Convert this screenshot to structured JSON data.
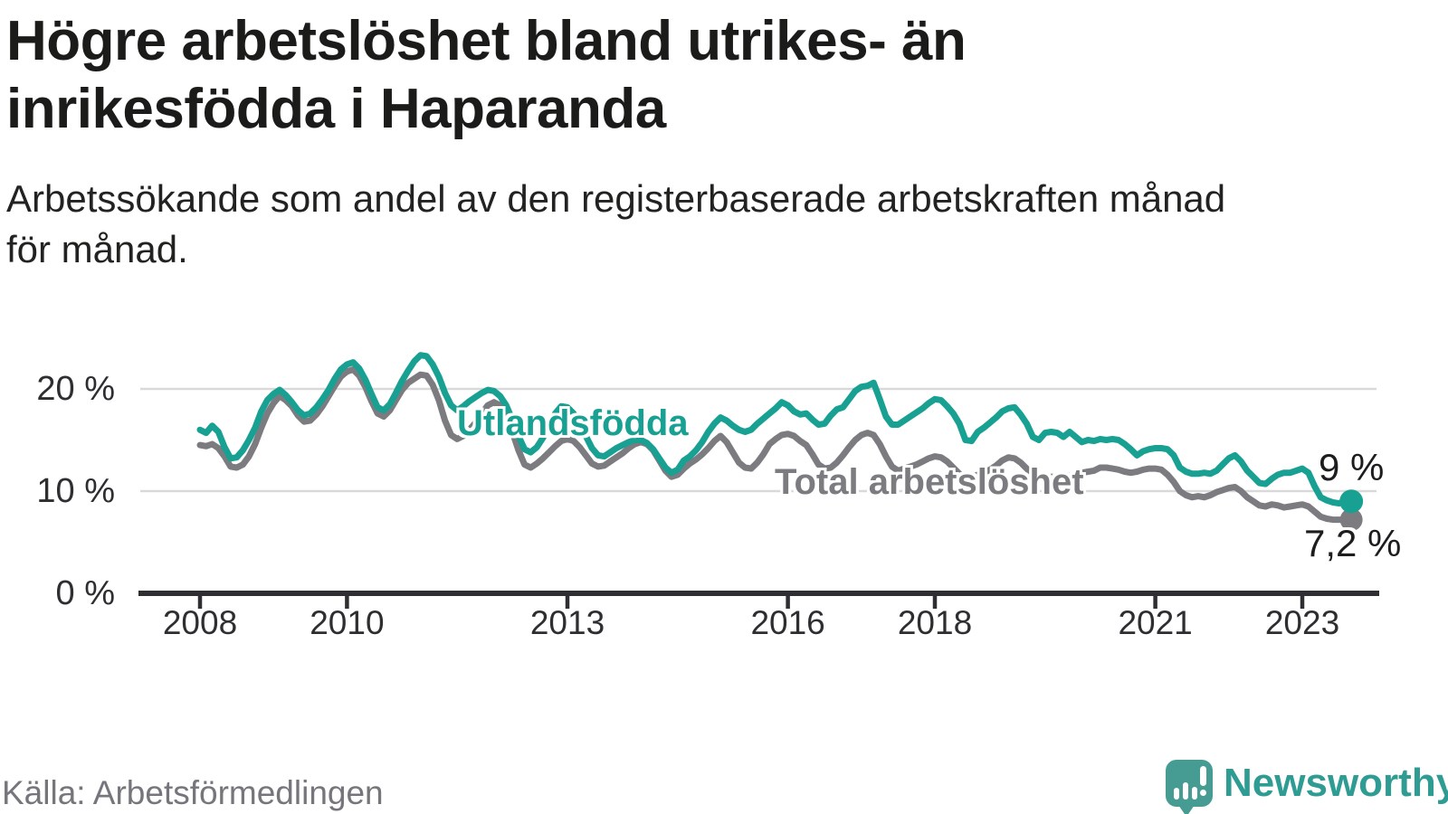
{
  "page": {
    "title_lines": [
      "Högre arbetslöshet bland utrikes- än",
      "inrikesfödda i Haparanda"
    ],
    "subtitle_lines": [
      "Arbetssökande som andel av den registerbaserade arbetskraften månad",
      "för månad."
    ],
    "source": "Källa: Arbetsförmedlingen",
    "brand_name": "Newsworthy",
    "brand_icon": "speech-bubble-with-bar-chart-and-exclamation"
  },
  "colors": {
    "foreign_born_line": "#18a192",
    "total_line": "#7b7b80",
    "axis": "#2f2f33",
    "gridline": "#d9d9d9",
    "value_label_text": "#1d1d1f",
    "muted_text": "#75757b",
    "brand_teal": "#2e9c93",
    "brand_icon_teal": "#469c93"
  },
  "chart_data": {
    "type": "line",
    "title": "Högre arbetslöshet bland utrikes- än inrikesfödda i Haparanda",
    "subtitle": "Arbetssökande som andel av den registerbaserade arbetskraften månad för månad.",
    "x": {
      "start_year": 2008,
      "start_month": 1,
      "end_year": 2023,
      "end_month": 9,
      "frequency": "monthly",
      "tick_years": [
        2008,
        2010,
        2013,
        2016,
        2018,
        2021,
        2023
      ]
    },
    "y": {
      "ticks": [
        0,
        10,
        20
      ],
      "suffix": " %",
      "min": 0,
      "max": 24
    },
    "grid": "horizontal",
    "legend_position": "inline-labels",
    "series": [
      {
        "name": "Utlandsfödda",
        "color": "#18a192",
        "end_label": "9 %",
        "end_dot": true,
        "values": [
          16.0,
          15.7,
          16.4,
          15.8,
          14.3,
          13.2,
          13.3,
          14.0,
          15.0,
          16.2,
          17.8,
          18.9,
          19.5,
          19.9,
          19.4,
          18.7,
          17.9,
          17.4,
          17.6,
          18.2,
          19.0,
          19.9,
          21.0,
          21.9,
          22.4,
          22.6,
          22.0,
          20.9,
          19.5,
          18.2,
          17.9,
          18.5,
          19.6,
          20.8,
          21.8,
          22.7,
          23.3,
          23.2,
          22.4,
          21.2,
          19.6,
          18.4,
          17.9,
          18.3,
          18.8,
          19.2,
          19.6,
          19.9,
          19.8,
          19.3,
          18.4,
          17.0,
          15.4,
          14.1,
          13.8,
          14.3,
          15.2,
          16.4,
          17.6,
          18.3,
          18.2,
          17.6,
          16.6,
          15.4,
          14.2,
          13.5,
          13.4,
          13.8,
          14.2,
          14.5,
          14.8,
          15.0,
          15.0,
          14.7,
          14.1,
          13.2,
          12.3,
          11.8,
          12.1,
          13.0,
          13.4,
          14.0,
          14.8,
          15.8,
          16.6,
          17.2,
          16.9,
          16.4,
          16.0,
          15.8,
          16.0,
          16.6,
          17.1,
          17.6,
          18.1,
          18.7,
          18.4,
          17.8,
          17.5,
          17.6,
          17.0,
          16.5,
          16.6,
          17.4,
          18.0,
          18.2,
          19.0,
          19.8,
          20.2,
          20.3,
          20.6,
          19.0,
          17.3,
          16.5,
          16.5,
          16.9,
          17.3,
          17.7,
          18.1,
          18.6,
          19.0,
          18.9,
          18.3,
          17.6,
          16.6,
          15.0,
          14.9,
          15.8,
          16.2,
          16.7,
          17.2,
          17.8,
          18.1,
          18.2,
          17.5,
          16.6,
          15.3,
          15.0,
          15.7,
          15.8,
          15.7,
          15.3,
          15.8,
          15.3,
          14.8,
          15.0,
          14.9,
          15.1,
          15.0,
          15.1,
          15.0,
          14.6,
          14.1,
          13.5,
          13.9,
          14.1,
          14.2,
          14.2,
          14.1,
          13.5,
          12.3,
          11.9,
          11.7,
          11.7,
          11.8,
          11.7,
          12.0,
          12.6,
          13.2,
          13.5,
          12.9,
          12.0,
          11.4,
          10.8,
          10.7,
          11.2,
          11.6,
          11.8,
          11.8,
          12.0,
          12.2,
          11.8,
          10.5,
          9.4,
          9.1,
          8.9,
          8.8,
          9.0,
          9.0
        ]
      },
      {
        "name": "Total arbetslöshet",
        "color": "#7b7b80",
        "end_label": "7,2 %",
        "end_dot": true,
        "values": [
          14.5,
          14.4,
          14.6,
          14.2,
          13.4,
          12.4,
          12.3,
          12.6,
          13.4,
          14.6,
          16.2,
          17.6,
          18.6,
          19.3,
          18.9,
          18.3,
          17.4,
          16.8,
          16.9,
          17.5,
          18.3,
          19.3,
          20.3,
          21.2,
          21.7,
          21.9,
          21.3,
          20.2,
          18.8,
          17.6,
          17.3,
          17.9,
          18.9,
          19.9,
          20.6,
          21.0,
          21.4,
          21.3,
          20.4,
          18.9,
          16.9,
          15.5,
          15.1,
          15.4,
          16.0,
          16.7,
          17.6,
          18.4,
          18.7,
          18.4,
          17.4,
          15.8,
          14.0,
          12.6,
          12.3,
          12.7,
          13.2,
          13.8,
          14.4,
          14.9,
          15.1,
          14.9,
          14.3,
          13.5,
          12.7,
          12.4,
          12.5,
          12.9,
          13.3,
          13.7,
          14.2,
          14.6,
          14.8,
          14.6,
          14.0,
          13.0,
          12.0,
          11.4,
          11.6,
          12.2,
          12.7,
          13.1,
          13.6,
          14.2,
          14.9,
          15.4,
          14.8,
          13.8,
          12.8,
          12.3,
          12.2,
          12.8,
          13.6,
          14.6,
          15.1,
          15.5,
          15.6,
          15.4,
          14.9,
          14.5,
          13.6,
          12.6,
          12.2,
          12.3,
          12.8,
          13.5,
          14.3,
          15.0,
          15.5,
          15.7,
          15.5,
          14.6,
          13.4,
          12.4,
          12.0,
          12.2,
          12.4,
          12.6,
          12.9,
          13.2,
          13.4,
          13.3,
          12.9,
          12.3,
          11.7,
          11.3,
          11.4,
          11.6,
          11.8,
          12.1,
          12.5,
          13.0,
          13.3,
          13.2,
          12.8,
          12.2,
          11.6,
          11.2,
          11.3,
          11.4,
          11.4,
          11.3,
          11.5,
          11.6,
          11.8,
          11.9,
          12.0,
          12.3,
          12.3,
          12.2,
          12.1,
          11.9,
          11.8,
          11.9,
          12.1,
          12.2,
          12.2,
          12.1,
          11.6,
          10.9,
          10.0,
          9.6,
          9.4,
          9.5,
          9.4,
          9.6,
          9.9,
          10.1,
          10.3,
          10.4,
          10.0,
          9.4,
          9.0,
          8.6,
          8.5,
          8.7,
          8.6,
          8.4,
          8.5,
          8.6,
          8.7,
          8.5,
          8.0,
          7.5,
          7.3,
          7.2,
          7.2,
          7.2,
          7.2
        ]
      }
    ]
  }
}
